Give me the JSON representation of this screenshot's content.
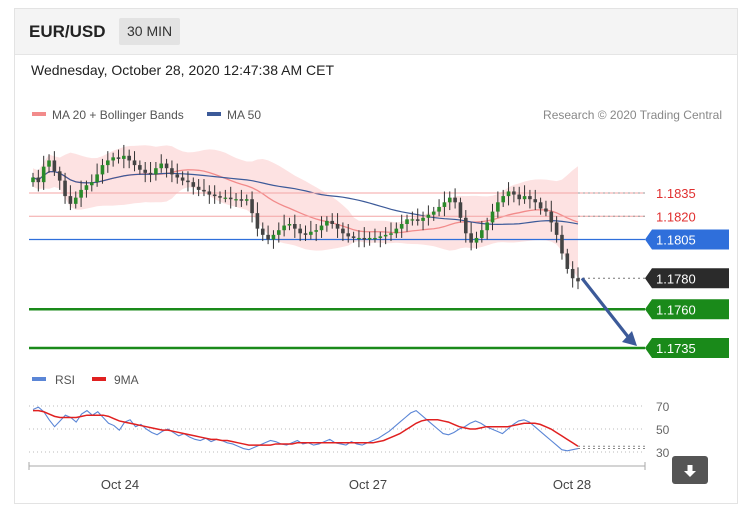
{
  "header": {
    "symbol": "EUR/USD",
    "timeframe": "30 MIN"
  },
  "datetime": "Wednesday, October 28, 2020 12:47:38 AM CET",
  "legend": {
    "ma20": {
      "label": "MA 20 + Bollinger Bands",
      "color": "#f28b8b"
    },
    "ma50": {
      "label": "MA 50",
      "color": "#3c5a99"
    },
    "credit": "Research © 2020 Trading Central"
  },
  "rsi_legend": {
    "rsi": {
      "label": "RSI",
      "color": "#5b86d6"
    },
    "ma9": {
      "label": "9MA",
      "color": "#e02020"
    }
  },
  "download_icon": "download-arrow-icon",
  "chart_data": [
    {
      "type": "candlestick",
      "title": "EUR/USD",
      "xlabel": "",
      "ylabel": "",
      "ylim": [
        1.1715,
        1.187
      ],
      "x_ticks": [
        "Oct 24",
        "Oct 27",
        "Oct 28"
      ],
      "grid": false,
      "legend_placement": "top-left",
      "close_series": [
        1.1845,
        1.1842,
        1.1852,
        1.1856,
        1.1849,
        1.1843,
        1.1833,
        1.1828,
        1.1832,
        1.1837,
        1.184,
        1.1842,
        1.1847,
        1.1853,
        1.1856,
        1.1858,
        1.1857,
        1.1859,
        1.1856,
        1.1853,
        1.185,
        1.1848,
        1.1847,
        1.1851,
        1.1854,
        1.1851,
        1.1847,
        1.1845,
        1.1843,
        1.1842,
        1.1839,
        1.1837,
        1.1836,
        1.1834,
        1.1833,
        1.1832,
        1.1832,
        1.1831,
        1.1831,
        1.183,
        1.1831,
        1.1822,
        1.1812,
        1.1808,
        1.1805,
        1.1808,
        1.1811,
        1.1814,
        1.1815,
        1.1812,
        1.1809,
        1.1808,
        1.181,
        1.1811,
        1.1814,
        1.1817,
        1.1815,
        1.1812,
        1.1809,
        1.1807,
        1.1806,
        1.1806,
        1.1805,
        1.1806,
        1.1806,
        1.1807,
        1.1808,
        1.1809,
        1.1812,
        1.1815,
        1.1818,
        1.1818,
        1.1817,
        1.1819,
        1.1821,
        1.1823,
        1.1826,
        1.1829,
        1.1832,
        1.1829,
        1.1819,
        1.1809,
        1.1803,
        1.1806,
        1.1811,
        1.1816,
        1.1823,
        1.1829,
        1.1833,
        1.1836,
        1.1834,
        1.1831,
        1.1833,
        1.1831,
        1.1829,
        1.1825,
        1.1823,
        1.1816,
        1.1808,
        1.1796,
        1.1786,
        1.178,
        1.1778
      ],
      "levels": [
        {
          "value": 1.1835,
          "label": "1.1835",
          "style": "resistance",
          "color": "#e03030"
        },
        {
          "value": 1.182,
          "label": "1.1820",
          "style": "resistance",
          "color": "#e03030"
        },
        {
          "value": 1.1805,
          "label": "1.1805",
          "style": "pivot",
          "color": "#2f6fdb"
        },
        {
          "value": 1.178,
          "label": "1.1780",
          "style": "last",
          "color": "#2b2b2b"
        },
        {
          "value": 1.176,
          "label": "1.1760",
          "style": "target",
          "color": "#1a8a1a"
        },
        {
          "value": 1.1735,
          "label": "1.1735",
          "style": "target",
          "color": "#1a8a1a"
        }
      ],
      "arrow": {
        "from": 1.178,
        "to": 1.1735,
        "color": "#3c5a99"
      }
    },
    {
      "type": "line",
      "title": "RSI",
      "ylim": [
        25,
        75
      ],
      "y_ticks": [
        "70",
        "50",
        "30"
      ],
      "series": [
        {
          "name": "RSI",
          "color": "#5b86d6",
          "values": [
            67,
            69,
            65,
            58,
            52,
            57,
            62,
            60,
            56,
            63,
            66,
            62,
            65,
            60,
            55,
            53,
            49,
            56,
            58,
            52,
            54,
            50,
            47,
            45,
            48,
            50,
            47,
            44,
            46,
            43,
            41,
            40,
            42,
            39,
            41,
            40,
            38,
            37,
            35,
            33,
            32,
            34,
            36,
            38,
            40,
            39,
            37,
            36,
            38,
            40,
            37,
            38,
            36,
            37,
            39,
            41,
            38,
            37,
            36,
            39,
            37,
            36,
            38,
            40,
            42,
            45,
            48,
            52,
            56,
            60,
            64,
            66,
            62,
            58,
            54,
            50,
            46,
            45,
            47,
            50,
            52,
            55,
            57,
            55,
            52,
            50,
            48,
            46,
            50,
            54,
            57,
            58,
            56,
            52,
            48,
            44,
            40,
            36,
            32,
            31,
            32,
            33
          ]
        },
        {
          "name": "9MA",
          "color": "#e02020",
          "values": [
            66,
            66,
            65,
            63,
            61,
            60,
            60,
            60,
            60,
            61,
            62,
            62,
            62,
            62,
            61,
            59,
            57,
            56,
            55,
            54,
            53,
            52,
            51,
            50,
            49,
            49,
            48,
            47,
            46,
            45,
            44,
            43,
            42,
            41,
            41,
            40,
            40,
            39,
            38,
            37,
            36,
            36,
            36,
            36,
            36,
            37,
            37,
            37,
            37,
            38,
            38,
            38,
            38,
            38,
            38,
            38,
            38,
            38,
            38,
            38,
            38,
            38,
            38,
            38,
            39,
            40,
            42,
            44,
            46,
            49,
            52,
            55,
            57,
            58,
            58,
            58,
            57,
            56,
            54,
            52,
            51,
            50,
            50,
            51,
            52,
            52,
            52,
            52,
            52,
            53,
            54,
            55,
            55,
            55,
            54,
            52,
            50,
            47,
            44,
            41,
            38,
            35
          ]
        }
      ]
    }
  ]
}
